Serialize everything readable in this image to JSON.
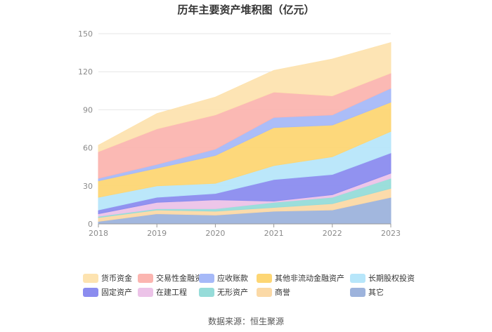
{
  "title": "历年主要资产堆积图（亿元）",
  "source": "数据来源：恒生聚源",
  "colors": {
    "其它": "#9db3dc",
    "商誉": "#fbd9a6",
    "无形资产": "#96dcd9",
    "在建工程": "#ecc3e8",
    "固定资产": "#8b8cef",
    "长期股权投资": "#b7e6fa",
    "其他非流动金融资产": "#fdd674",
    "应收账款": "#a6b9f8",
    "交易性金融资产": "#fbb5b0",
    "货币资金": "#fde3b0"
  },
  "chart_data": {
    "type": "area",
    "stacked": true,
    "title": "历年主要资产堆积图（亿元）",
    "x": [
      "2018",
      "2019",
      "2020",
      "2021",
      "2022",
      "2023"
    ],
    "ylim": [
      0,
      150
    ],
    "yticks": [
      "0",
      "30",
      "60",
      "90",
      "120",
      "150"
    ],
    "grid": true,
    "legend_position": "bottom",
    "series": [
      {
        "name": "其它",
        "values": [
          2,
          8,
          7,
          10,
          11,
          21
        ]
      },
      {
        "name": "商誉",
        "values": [
          3,
          3,
          3,
          3,
          5,
          7
        ]
      },
      {
        "name": "无形资产",
        "values": [
          1,
          1,
          2,
          4,
          5,
          8
        ]
      },
      {
        "name": "在建工程",
        "values": [
          2,
          5,
          7,
          1,
          2,
          4
        ]
      },
      {
        "name": "固定资产",
        "values": [
          3,
          4,
          5,
          17,
          16,
          16
        ]
      },
      {
        "name": "长期股权投资",
        "values": [
          10,
          9,
          8,
          11,
          14,
          17
        ]
      },
      {
        "name": "其他非流动金融资产",
        "values": [
          13,
          14,
          22,
          30,
          25,
          23
        ]
      },
      {
        "name": "应收账款",
        "values": [
          2,
          3,
          5,
          8,
          8,
          11
        ]
      },
      {
        "name": "交易性金融资产",
        "values": [
          21,
          28,
          27,
          20,
          15,
          12
        ]
      },
      {
        "name": "货币资金",
        "values": [
          5,
          12,
          14,
          17,
          29,
          24
        ]
      }
    ]
  },
  "legend": [
    [
      "货币资金",
      "交易性金融资产",
      "应收账款",
      "其他非流动金融资产",
      "长期股权投资"
    ],
    [
      "固定资产",
      "在建工程",
      "无形资产",
      "商誉",
      "其它"
    ]
  ]
}
